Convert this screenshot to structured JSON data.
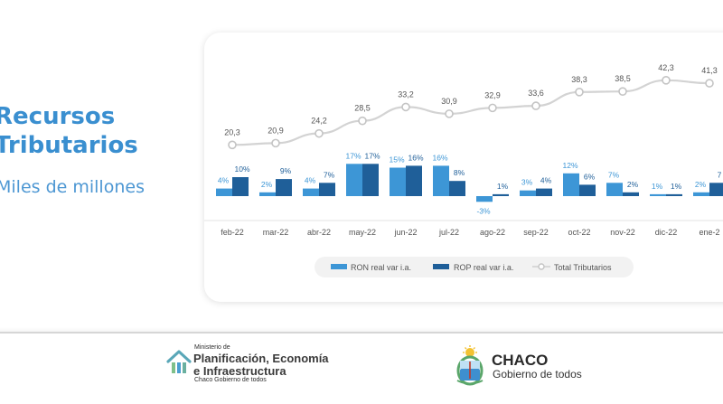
{
  "page": {
    "title_line1": "Recursos",
    "title_line2": "Tributarios",
    "subtitle": "Miles de millones"
  },
  "colors": {
    "accent": "#3a8fd0",
    "ron": "#3d96d6",
    "rop": "#1f5f99",
    "total_line": "#d3d3d3"
  },
  "footer": {
    "ministry_small": "Ministerio de",
    "ministry_name_line1": "Planificación, Economía",
    "ministry_name_line2": "e Infraestructura",
    "ministry_sub": "Chaco Gobierno de todos",
    "ministry_icon": "house-icon",
    "province_name": "CHACO",
    "province_sub": "Gobierno de todos",
    "province_icon": "coat-of-arms-seal"
  },
  "chart_data": {
    "type": "bar",
    "categories": [
      "feb-22",
      "mar-22",
      "abr-22",
      "may-22",
      "jun-22",
      "jul-22",
      "ago-22",
      "sep-22",
      "oct-22",
      "nov-22",
      "dic-22",
      "ene-2"
    ],
    "series": [
      {
        "name": "RON real var i.a.",
        "type": "bar",
        "values": [
          4,
          2,
          4,
          17,
          15,
          16,
          -3,
          3,
          12,
          7,
          1,
          2
        ],
        "labels": [
          "4%",
          "2%",
          "4%",
          "17%",
          "15%",
          "16%",
          "-3%",
          "3%",
          "12%",
          "7%",
          "1%",
          "2%"
        ]
      },
      {
        "name": "ROP real var i.a.",
        "type": "bar",
        "values": [
          10,
          9,
          7,
          17,
          16,
          8,
          1,
          4,
          6,
          2,
          1,
          7
        ],
        "labels": [
          "10%",
          "9%",
          "7%",
          "17%",
          "16%",
          "8%",
          "1%",
          "4%",
          "6%",
          "2%",
          "1%",
          "7"
        ]
      },
      {
        "name": "Total Tributarios",
        "type": "line",
        "values": [
          20.3,
          20.9,
          24.2,
          28.5,
          33.2,
          30.9,
          32.9,
          33.6,
          38.3,
          38.5,
          42.3,
          41.3
        ],
        "labels": [
          "20,3",
          "20,9",
          "24,2",
          "28,5",
          "33,2",
          "30,9",
          "32,9",
          "33,6",
          "38,3",
          "38,5",
          "42,3",
          "41,3"
        ]
      }
    ],
    "legend": "bottom",
    "grid": false
  }
}
